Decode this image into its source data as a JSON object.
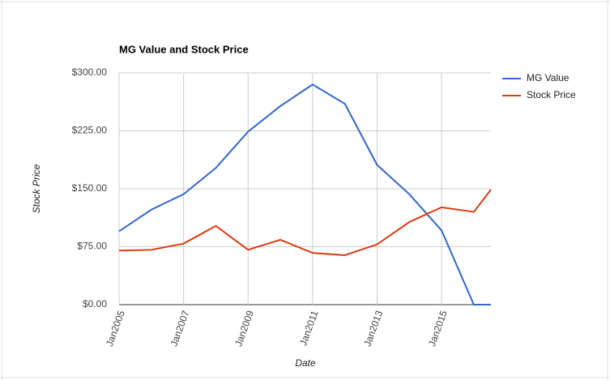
{
  "chart_data": {
    "type": "line",
    "title": "MG Value and Stock Price",
    "x_label": "Date",
    "y_label": "Stock Price",
    "x": [
      2005,
      2006,
      2007,
      2008,
      2009,
      2010,
      2011,
      2012,
      2013,
      2014,
      2015,
      2016,
      2016.53
    ],
    "series": [
      {
        "name": "MG Value",
        "color": "#3366cc",
        "values": [
          95,
          123,
          143,
          177,
          224,
          257,
          285,
          260,
          181,
          143,
          96,
          0,
          0
        ]
      },
      {
        "name": "Stock Price",
        "color": "#dc3912",
        "values": [
          70,
          71,
          79,
          102,
          71,
          84,
          67,
          64,
          78,
          107,
          126,
          120,
          149
        ]
      }
    ],
    "xlim": [
      2005,
      2016.53
    ],
    "xticks": [
      {
        "value": 2005,
        "label": "Jan2005"
      },
      {
        "value": 2007,
        "label": "Jan2007"
      },
      {
        "value": 2009,
        "label": "Jan2009"
      },
      {
        "value": 2011,
        "label": "Jan2011"
      },
      {
        "value": 2013,
        "label": "Jan2013"
      },
      {
        "value": 2015,
        "label": "Jan2015"
      }
    ],
    "ylim": [
      0,
      300
    ],
    "yticks": [
      {
        "value": 0,
        "label": "$0.00"
      },
      {
        "value": 75,
        "label": "$75.00"
      },
      {
        "value": 150,
        "label": "$150.00"
      },
      {
        "value": 225,
        "label": "$225.00"
      },
      {
        "value": 300,
        "label": "$300.00"
      }
    ],
    "grid": true,
    "legend": "right"
  }
}
